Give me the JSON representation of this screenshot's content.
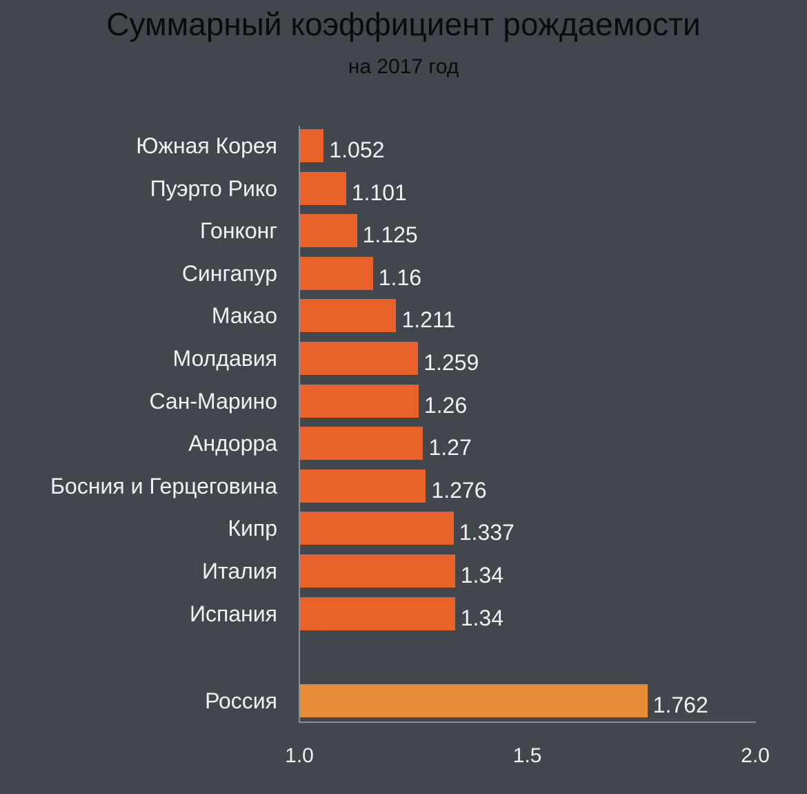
{
  "header": {
    "title": "Суммарный коэффициент рождаемости",
    "subtitle": "на 2017 год"
  },
  "colors": {
    "background": "#41474d",
    "bar": "#e8622a",
    "highlight_bar": "#e88c38",
    "axis": "#8a9097",
    "text": "#f2f2f2",
    "title": "#0b0b0b"
  },
  "chart_data": {
    "type": "bar",
    "orientation": "horizontal",
    "title": "Суммарный коэффициент рождаемости",
    "subtitle": "на 2017 год",
    "xlabel": "",
    "ylabel": "",
    "xlim": [
      1.0,
      2.0
    ],
    "x_ticks": [
      "1.0",
      "1.5",
      "2.0"
    ],
    "grid": false,
    "legend": null,
    "categories": [
      "Южная Корея",
      "Пуэрто Рико",
      "Гонконг",
      "Сингапур",
      "Макао",
      "Молдавия",
      "Сан-Марино",
      "Андорра",
      "Босния и Герцеговина",
      "Кипр",
      "Италия",
      "Испания",
      "Россия"
    ],
    "values": [
      1.052,
      1.101,
      1.125,
      1.16,
      1.211,
      1.259,
      1.26,
      1.27,
      1.276,
      1.337,
      1.34,
      1.34,
      1.762
    ],
    "value_labels": [
      "1.052",
      "1.101",
      "1.125",
      "1.16",
      "1.211",
      "1.259",
      "1.26",
      "1.27",
      "1.276",
      "1.337",
      "1.34",
      "1.34",
      "1.762"
    ],
    "highlighted": "Россия"
  }
}
